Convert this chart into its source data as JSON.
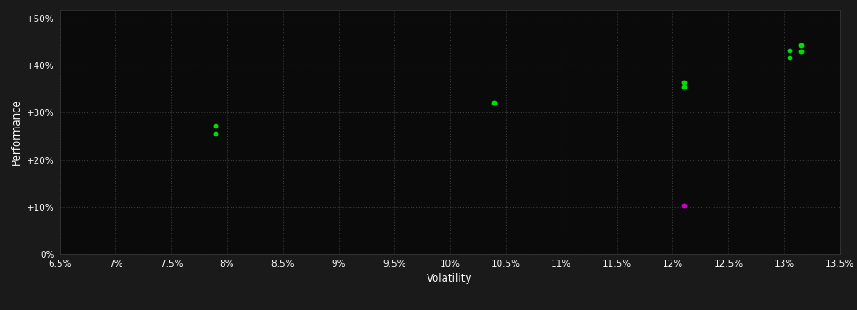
{
  "background_color": "#1a1a1a",
  "plot_bg_color": "#0a0a0a",
  "grid_color": "#3a3a3a",
  "text_color": "#ffffff",
  "xlabel": "Volatility",
  "ylabel": "Performance",
  "xlim": [
    0.065,
    0.135
  ],
  "ylim": [
    0.0,
    0.52
  ],
  "xticks": [
    0.065,
    0.07,
    0.075,
    0.08,
    0.085,
    0.09,
    0.095,
    0.1,
    0.105,
    0.11,
    0.115,
    0.12,
    0.125,
    0.13,
    0.135
  ],
  "yticks": [
    0.0,
    0.1,
    0.2,
    0.3,
    0.4,
    0.5
  ],
  "ytick_labels": [
    "0%",
    "+10%",
    "+20%",
    "+30%",
    "+40%",
    "+50%"
  ],
  "xtick_labels": [
    "6.5%",
    "7%",
    "7.5%",
    "8%",
    "8.5%",
    "9%",
    "9.5%",
    "10%",
    "10.5%",
    "11%",
    "11.5%",
    "12%",
    "12.5%",
    "13%",
    "13.5%"
  ],
  "green_points": [
    [
      0.079,
      0.273
    ],
    [
      0.079,
      0.255
    ],
    [
      0.104,
      0.322
    ],
    [
      0.121,
      0.365
    ],
    [
      0.121,
      0.355
    ],
    [
      0.1305,
      0.432
    ],
    [
      0.1305,
      0.418
    ],
    [
      0.1315,
      0.444
    ],
    [
      0.1315,
      0.43
    ]
  ],
  "magenta_points": [
    [
      0.121,
      0.104
    ]
  ],
  "green_color": "#00dd00",
  "magenta_color": "#cc00cc",
  "point_size": 18,
  "dpi": 100,
  "figsize": [
    9.66,
    3.5
  ]
}
